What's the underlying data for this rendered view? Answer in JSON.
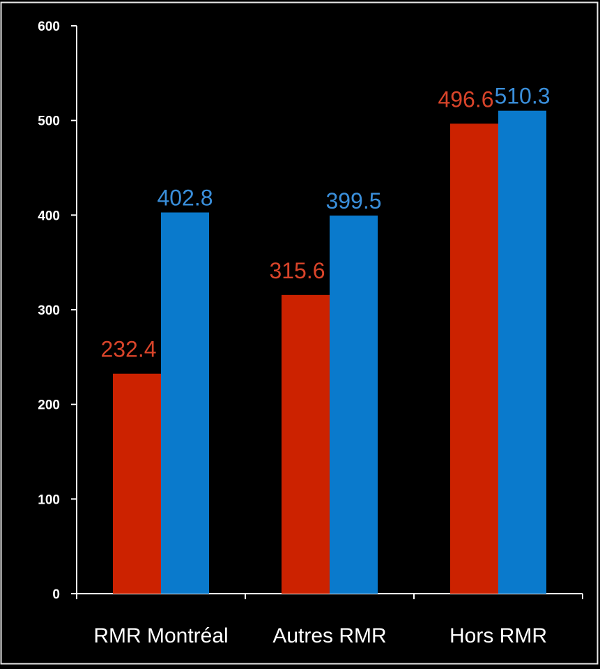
{
  "chart_data": {
    "type": "bar",
    "categories": [
      "RMR Montréal",
      "Autres RMR",
      "Hors RMR"
    ],
    "series": [
      {
        "values": [
          232.4,
          315.6,
          496.6
        ],
        "color": "#CC2200"
      },
      {
        "values": [
          402.8,
          399.5,
          510.3
        ],
        "color": "#0A7ACC"
      }
    ],
    "data_labels": [
      [
        "232.4",
        "315.6",
        "496.6"
      ],
      [
        "402.8",
        "399.5",
        "510.3"
      ]
    ],
    "ylim": [
      0,
      600
    ],
    "yticks": [
      0,
      100,
      200,
      300,
      400,
      500,
      600
    ],
    "ytick_labels": [
      "0",
      "100",
      "200",
      "300",
      "400",
      "500",
      "600"
    ],
    "title": "",
    "xlabel": "",
    "ylabel": "",
    "grid": false,
    "legend": "none",
    "background": "#000000",
    "axis_color": "#FFFFFF",
    "label_colors": [
      "#D9442A",
      "#3A8FDB"
    ]
  }
}
